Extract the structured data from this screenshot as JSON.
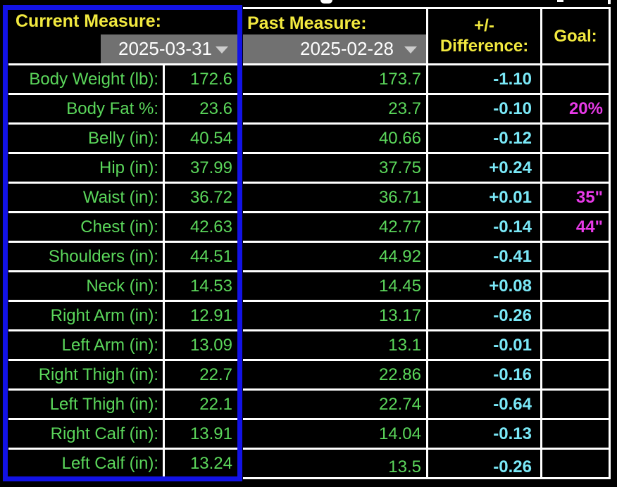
{
  "header": {
    "current_label": "Current Measure:",
    "current_date": "2025-03-31",
    "past_label": "Past Measure:",
    "past_date": "2025-02-28",
    "diff_line1": "+/-",
    "diff_line2": "Difference:",
    "goal_label": "Goal:"
  },
  "rows": [
    {
      "label": "Body Weight (lb):",
      "current": "172.6",
      "past": "173.7",
      "diff": "-1.10",
      "goal": ""
    },
    {
      "label": "Body Fat %:",
      "current": "23.6",
      "past": "23.7",
      "diff": "-0.10",
      "goal": "20%"
    },
    {
      "label": "Belly (in):",
      "current": "40.54",
      "past": "40.66",
      "diff": "-0.12",
      "goal": ""
    },
    {
      "label": "Hip (in):",
      "current": "37.99",
      "past": "37.75",
      "diff": "+0.24",
      "goal": ""
    },
    {
      "label": "Waist (in):",
      "current": "36.72",
      "past": "36.71",
      "diff": "+0.01",
      "goal": "35\""
    },
    {
      "label": "Chest (in):",
      "current": "42.63",
      "past": "42.77",
      "diff": "-0.14",
      "goal": "44\""
    },
    {
      "label": "Shoulders (in):",
      "current": "44.51",
      "past": "44.92",
      "diff": "-0.41",
      "goal": ""
    },
    {
      "label": "Neck (in):",
      "current": "14.53",
      "past": "14.45",
      "diff": "+0.08",
      "goal": ""
    },
    {
      "label": "Right Arm (in):",
      "current": "12.91",
      "past": "13.17",
      "diff": "-0.26",
      "goal": ""
    },
    {
      "label": "Left Arm (in):",
      "current": "13.09",
      "past": "13.1",
      "diff": "-0.01",
      "goal": ""
    },
    {
      "label": "Right Thigh (in):",
      "current": "22.7",
      "past": "22.86",
      "diff": "-0.16",
      "goal": ""
    },
    {
      "label": "Left Thigh (in):",
      "current": "22.1",
      "past": "22.74",
      "diff": "-0.64",
      "goal": ""
    },
    {
      "label": "Right Calf (in):",
      "current": "13.91",
      "past": "14.04",
      "diff": "-0.13",
      "goal": ""
    },
    {
      "label": "Left Calf (in):",
      "current": "13.24",
      "past": "13.5",
      "diff": "-0.26",
      "goal": ""
    }
  ],
  "colors": {
    "bg": "#000000",
    "line": "#ffffff",
    "green": "#5bd75b",
    "yellow": "#f2e93f",
    "cyan": "#7ae8f7",
    "magenta": "#e83ae8",
    "blue": "#1212e6",
    "gray": "#717171",
    "arrow": "#cccccc"
  }
}
